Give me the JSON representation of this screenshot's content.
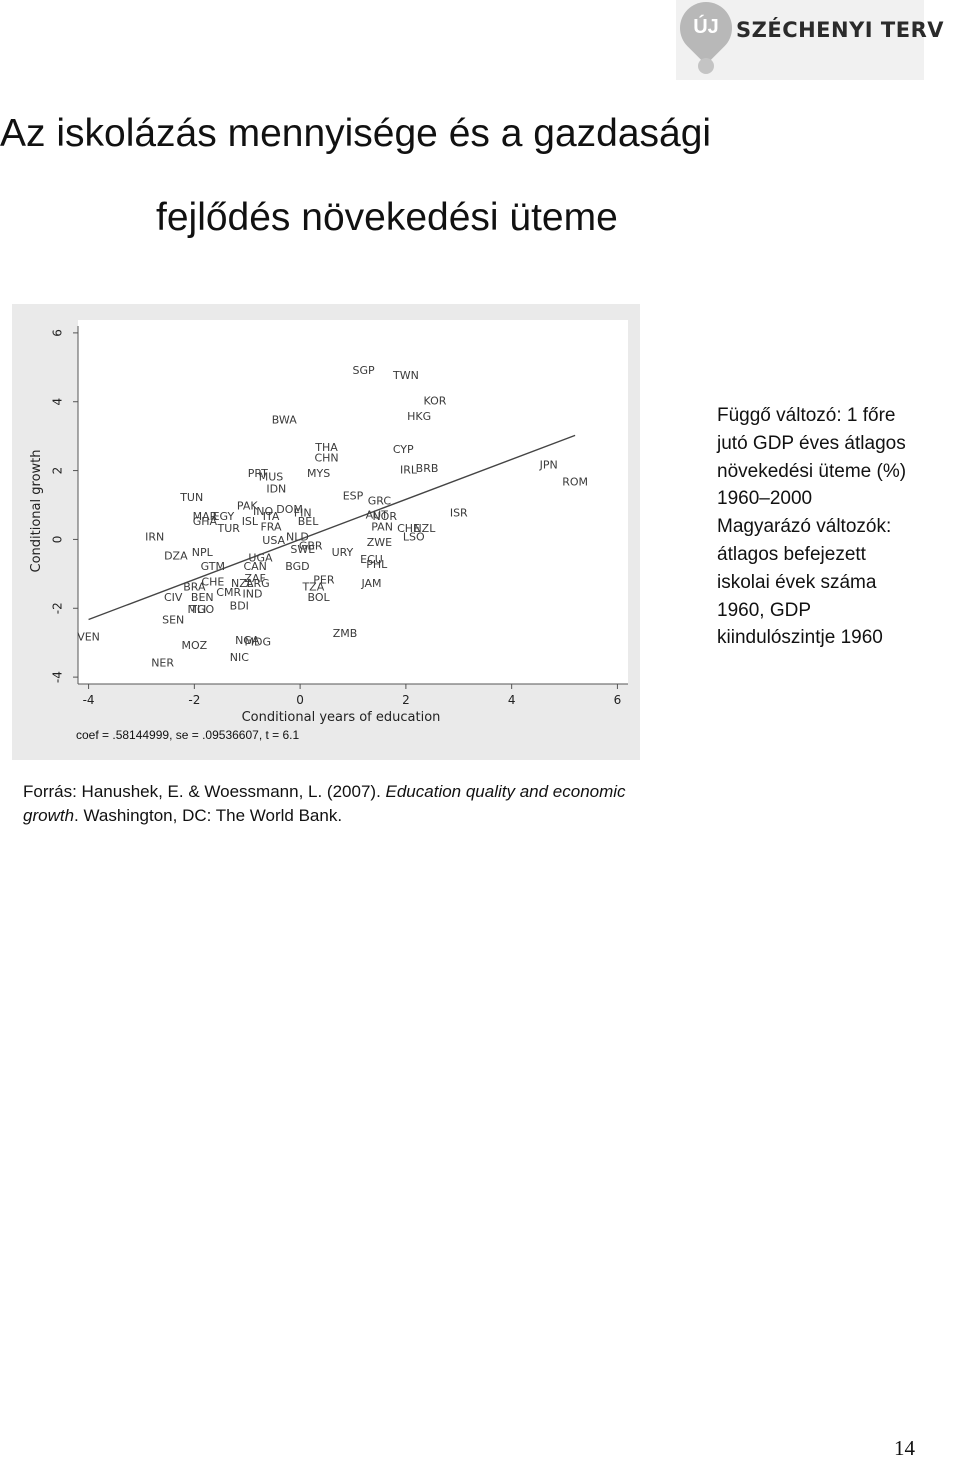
{
  "logo": {
    "badge": "ÚJ",
    "text": "SZÉCHENYI TERV"
  },
  "title": {
    "line1": "Az iskolázás mennyisége és a gazdasági",
    "line2": "fejlődés növekedési üteme"
  },
  "notes": [
    "Függő változó: 1 főre",
    "jutó GDP éves átlagos",
    "növekedési üteme (%)",
    "1960–2000",
    "Magyarázó változók:",
    "átlagos befejezett",
    "iskolai évek száma",
    "1960, GDP",
    "kiindulószintje 1960"
  ],
  "source": {
    "prefix": "Forrás: Hanushek, E. & Woessmann, L. (2007). ",
    "italic": "Education quality and economic growth",
    "suffix": ". Washington, DC: The World Bank."
  },
  "page_number": "14",
  "chart_data": {
    "type": "scatter",
    "xlabel": "Conditional years of education",
    "ylabel": "Conditional growth",
    "xlim": [
      -4.2,
      6.2
    ],
    "ylim": [
      -4.2,
      6.2
    ],
    "xticks": [
      -4,
      -2,
      0,
      2,
      4,
      6
    ],
    "yticks": [
      -4,
      -2,
      0,
      2,
      4,
      6
    ],
    "grid": false,
    "line_color": "#444444",
    "point_label_color": "#3a3a3a",
    "fit_line": {
      "slope": 0.58144999,
      "x": [
        -4.0,
        5.2
      ]
    },
    "coef_text": "coef = .58144999, se = .09536607, t = 6.1",
    "points": [
      {
        "label": "SGP",
        "x": 1.2,
        "y": 4.9
      },
      {
        "label": "TWN",
        "x": 2.0,
        "y": 4.75
      },
      {
        "label": "KOR",
        "x": 2.55,
        "y": 4.0
      },
      {
        "label": "HKG",
        "x": 2.25,
        "y": 3.55
      },
      {
        "label": "BWA",
        "x": -0.3,
        "y": 3.45
      },
      {
        "label": "THA",
        "x": 0.5,
        "y": 2.65
      },
      {
        "label": "CHN",
        "x": 0.5,
        "y": 2.35
      },
      {
        "label": "CYP",
        "x": 1.95,
        "y": 2.6
      },
      {
        "label": "MYS",
        "x": 0.35,
        "y": 1.9
      },
      {
        "label": "IRL",
        "x": 2.05,
        "y": 2.0
      },
      {
        "label": "BRB",
        "x": 2.4,
        "y": 2.05
      },
      {
        "label": "JPN",
        "x": 4.7,
        "y": 2.15
      },
      {
        "label": "ROM",
        "x": 5.2,
        "y": 1.65
      },
      {
        "label": "PRT",
        "x": -0.8,
        "y": 1.9
      },
      {
        "label": "MUS",
        "x": -0.55,
        "y": 1.8
      },
      {
        "label": "IDN",
        "x": -0.45,
        "y": 1.45
      },
      {
        "label": "TUN",
        "x": -2.05,
        "y": 1.2
      },
      {
        "label": "ESP",
        "x": 1.0,
        "y": 1.25
      },
      {
        "label": "GRC",
        "x": 1.5,
        "y": 1.1
      },
      {
        "label": "PAK",
        "x": -1.0,
        "y": 0.95
      },
      {
        "label": "INO",
        "x": -0.7,
        "y": 0.8
      },
      {
        "label": "DOM",
        "x": -0.2,
        "y": 0.85
      },
      {
        "label": "FIN",
        "x": 0.05,
        "y": 0.75
      },
      {
        "label": "AUT",
        "x": 1.45,
        "y": 0.7
      },
      {
        "label": "ISR",
        "x": 3.0,
        "y": 0.75
      },
      {
        "label": "MAR",
        "x": -1.8,
        "y": 0.65
      },
      {
        "label": "EGY",
        "x": -1.45,
        "y": 0.65
      },
      {
        "label": "ISL",
        "x": -0.95,
        "y": 0.5
      },
      {
        "label": "ITA",
        "x": -0.55,
        "y": 0.65
      },
      {
        "label": "BEL",
        "x": 0.15,
        "y": 0.5
      },
      {
        "label": "NOR",
        "x": 1.6,
        "y": 0.65
      },
      {
        "label": "GHA",
        "x": -1.8,
        "y": 0.5
      },
      {
        "label": "TUR",
        "x": -1.35,
        "y": 0.3
      },
      {
        "label": "FRA",
        "x": -0.55,
        "y": 0.35
      },
      {
        "label": "PAN",
        "x": 1.55,
        "y": 0.35
      },
      {
        "label": "CHE",
        "x": 2.05,
        "y": 0.3
      },
      {
        "label": "NZL",
        "x": 2.35,
        "y": 0.3
      },
      {
        "label": "IRN",
        "x": -2.75,
        "y": 0.05
      },
      {
        "label": "NLD",
        "x": -0.05,
        "y": 0.05
      },
      {
        "label": "USA",
        "x": -0.5,
        "y": -0.05
      },
      {
        "label": "ZWE",
        "x": 1.5,
        "y": -0.1
      },
      {
        "label": "LSO",
        "x": 2.15,
        "y": 0.05
      },
      {
        "label": "GBR",
        "x": 0.2,
        "y": -0.2
      },
      {
        "label": "SWE",
        "x": 0.05,
        "y": -0.3
      },
      {
        "label": "URY",
        "x": 0.8,
        "y": -0.4
      },
      {
        "label": "DZA",
        "x": -2.35,
        "y": -0.5
      },
      {
        "label": "NPL",
        "x": -1.85,
        "y": -0.4
      },
      {
        "label": "UGA",
        "x": -0.75,
        "y": -0.55
      },
      {
        "label": "ECU",
        "x": 1.35,
        "y": -0.6
      },
      {
        "label": "PHL",
        "x": 1.45,
        "y": -0.75
      },
      {
        "label": "GTM",
        "x": -1.65,
        "y": -0.8
      },
      {
        "label": "CAN",
        "x": -0.85,
        "y": -0.8
      },
      {
        "label": "BGD",
        "x": -0.05,
        "y": -0.8
      },
      {
        "label": "ZAF",
        "x": -0.85,
        "y": -1.15
      },
      {
        "label": "PER",
        "x": 0.45,
        "y": -1.2
      },
      {
        "label": "JAM",
        "x": 1.35,
        "y": -1.3
      },
      {
        "label": "CHE",
        "x": -1.65,
        "y": -1.25
      },
      {
        "label": "NZL",
        "x": -1.1,
        "y": -1.3
      },
      {
        "label": "ARG",
        "x": -0.8,
        "y": -1.3
      },
      {
        "label": "TZA",
        "x": 0.25,
        "y": -1.4
      },
      {
        "label": "BRA",
        "x": -2.0,
        "y": -1.4
      },
      {
        "label": "CIV",
        "x": -2.4,
        "y": -1.7
      },
      {
        "label": "BEN",
        "x": -1.85,
        "y": -1.7
      },
      {
        "label": "CMR",
        "x": -1.35,
        "y": -1.55
      },
      {
        "label": "IND",
        "x": -0.9,
        "y": -1.6
      },
      {
        "label": "BOL",
        "x": 0.35,
        "y": -1.7
      },
      {
        "label": "BDI",
        "x": -1.15,
        "y": -1.95
      },
      {
        "label": "MLI",
        "x": -1.95,
        "y": -2.05
      },
      {
        "label": "TGO",
        "x": -1.85,
        "y": -2.05
      },
      {
        "label": "SEN",
        "x": -2.4,
        "y": -2.35
      },
      {
        "label": "VEN",
        "x": -4.0,
        "y": -2.85
      },
      {
        "label": "ZMB",
        "x": 0.85,
        "y": -2.75
      },
      {
        "label": "NGA",
        "x": -1.0,
        "y": -2.95
      },
      {
        "label": "MDG",
        "x": -0.8,
        "y": -3.0
      },
      {
        "label": "MOZ",
        "x": -2.0,
        "y": -3.1
      },
      {
        "label": "NIC",
        "x": -1.15,
        "y": -3.45
      },
      {
        "label": "NER",
        "x": -2.6,
        "y": -3.6
      }
    ]
  }
}
